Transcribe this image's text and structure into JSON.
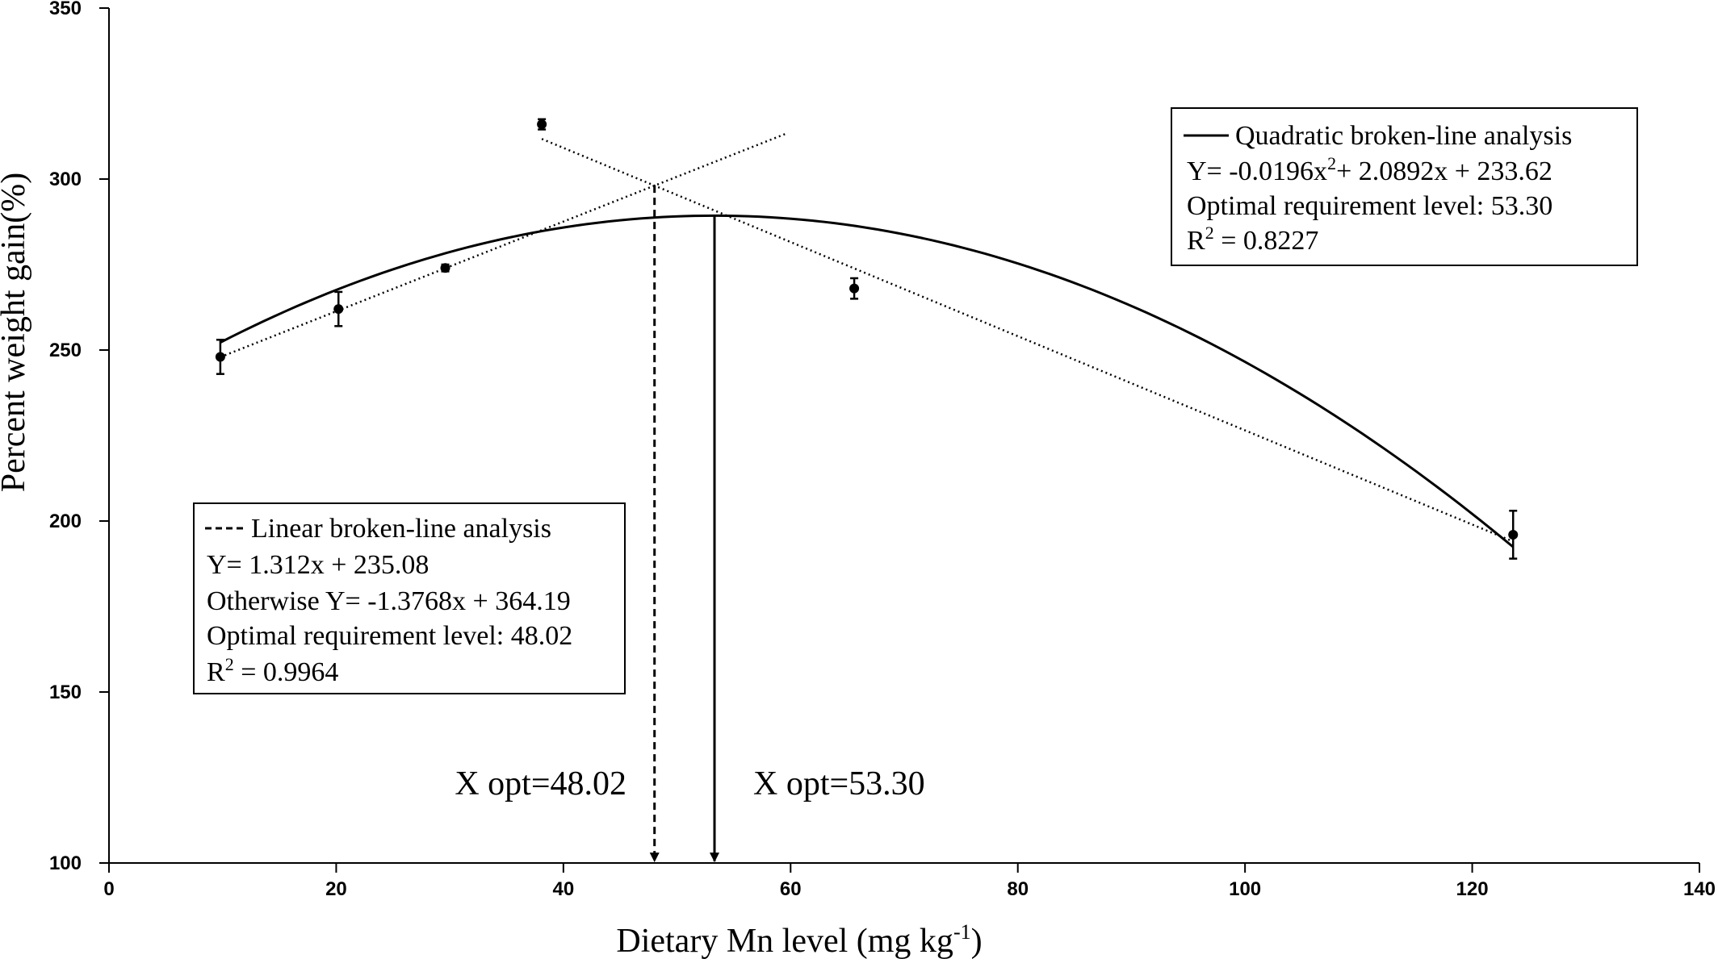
{
  "chart_data": {
    "type": "scatter",
    "title": "",
    "xlabel_main": "Dietary Mn level (mg kg",
    "xlabel_sup": "-1",
    "xlabel_end": ")",
    "ylabel": "Percent weight gain(%)",
    "xlim": [
      0,
      140
    ],
    "ylim": [
      100,
      350
    ],
    "x_ticks": [
      0,
      20,
      40,
      60,
      80,
      100,
      120,
      140
    ],
    "y_ticks": [
      100,
      150,
      200,
      250,
      300,
      350
    ],
    "points": [
      {
        "x": 9.8,
        "y": 248,
        "err": 5
      },
      {
        "x": 20.2,
        "y": 262,
        "err": 5
      },
      {
        "x": 29.6,
        "y": 274,
        "err": 1
      },
      {
        "x": 38.1,
        "y": 316,
        "err": 1.5
      },
      {
        "x": 65.6,
        "y": 268,
        "err": 3
      },
      {
        "x": 123.6,
        "y": 196,
        "err": 7
      }
    ],
    "linear_fit_up": {
      "slope": 1.312,
      "intercept": 235.08,
      "x_range": [
        9.8,
        59.5
      ]
    },
    "linear_fit_down": {
      "slope": -1.3768,
      "intercept": 364.19,
      "x_range": [
        38.1,
        123.6
      ]
    },
    "quadratic_fit": {
      "a": -0.0196,
      "b": 2.0892,
      "c": 233.62,
      "x_range": [
        9.8,
        123.6
      ]
    },
    "xopt_linear": {
      "x": 48.02,
      "label": "X opt=48.02"
    },
    "xopt_quadratic": {
      "x": 53.3,
      "label": "X opt=53.30"
    },
    "legend_quadratic": {
      "title": "Quadratic broken-line analysis",
      "equation_a": "Y= -0.0196x",
      "equation_sup": "2",
      "equation_b": "+ 2.0892x + 233.62",
      "optimal": "Optimal requirement level: 53.30",
      "r2_r": "R",
      "r2_sup": "2",
      "r2_val": " = 0.8227"
    },
    "legend_linear": {
      "title": "Linear broken-line analysis",
      "equation": "Y= 1.312x + 235.08",
      "otherwise": "Otherwise Y= -1.3768x + 364.19",
      "optimal": "Optimal requirement level: 48.02",
      "r2_r": "R",
      "r2_sup": "2",
      "r2_val": " =  0.9964"
    }
  }
}
